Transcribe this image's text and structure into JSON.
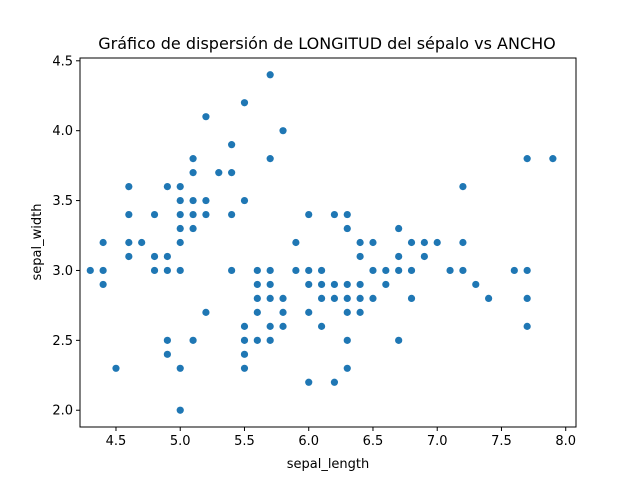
{
  "chart_data": {
    "type": "scatter",
    "title": "Gráfico de dispersión de LONGITUD del sépalo vs ANCHO",
    "xlabel": "sepal_length",
    "ylabel": "sepal_width",
    "xlim": [
      4.22,
      8.08
    ],
    "ylim": [
      1.88,
      4.52
    ],
    "xticks": [
      "4.5",
      "5.0",
      "5.5",
      "6.0",
      "6.5",
      "7.0",
      "7.5",
      "8.0"
    ],
    "yticks": [
      "2.0",
      "2.5",
      "3.0",
      "3.5",
      "4.0",
      "4.5"
    ],
    "grid": false,
    "marker_color": "#1f77b4",
    "points": [
      [
        4.3,
        3.0
      ],
      [
        4.4,
        3.0
      ],
      [
        4.4,
        2.9
      ],
      [
        4.4,
        3.2
      ],
      [
        4.5,
        2.3
      ],
      [
        4.6,
        3.1
      ],
      [
        4.6,
        3.4
      ],
      [
        4.6,
        3.6
      ],
      [
        4.6,
        3.2
      ],
      [
        4.7,
        3.2
      ],
      [
        4.8,
        3.4
      ],
      [
        4.8,
        3.0
      ],
      [
        4.8,
        3.1
      ],
      [
        4.9,
        3.0
      ],
      [
        4.9,
        3.1
      ],
      [
        4.9,
        3.6
      ],
      [
        4.9,
        2.5
      ],
      [
        4.9,
        2.4
      ],
      [
        5.0,
        3.6
      ],
      [
        5.0,
        3.4
      ],
      [
        5.0,
        3.0
      ],
      [
        5.0,
        3.3
      ],
      [
        5.0,
        3.5
      ],
      [
        5.0,
        3.2
      ],
      [
        5.0,
        2.3
      ],
      [
        5.0,
        2.0
      ],
      [
        5.1,
        3.5
      ],
      [
        5.1,
        3.8
      ],
      [
        5.1,
        3.7
      ],
      [
        5.1,
        3.3
      ],
      [
        5.1,
        3.4
      ],
      [
        5.1,
        2.5
      ],
      [
        5.2,
        3.4
      ],
      [
        5.2,
        3.5
      ],
      [
        5.2,
        4.1
      ],
      [
        5.2,
        2.7
      ],
      [
        5.3,
        3.7
      ],
      [
        5.4,
        3.9
      ],
      [
        5.4,
        3.7
      ],
      [
        5.4,
        3.4
      ],
      [
        5.4,
        3.0
      ],
      [
        5.5,
        4.2
      ],
      [
        5.5,
        3.5
      ],
      [
        5.5,
        2.3
      ],
      [
        5.5,
        2.4
      ],
      [
        5.5,
        2.5
      ],
      [
        5.5,
        2.6
      ],
      [
        5.6,
        2.9
      ],
      [
        5.6,
        3.0
      ],
      [
        5.6,
        2.5
      ],
      [
        5.6,
        2.8
      ],
      [
        5.6,
        2.7
      ],
      [
        5.7,
        4.4
      ],
      [
        5.7,
        3.8
      ],
      [
        5.7,
        2.8
      ],
      [
        5.7,
        2.6
      ],
      [
        5.7,
        3.0
      ],
      [
        5.7,
        2.9
      ],
      [
        5.7,
        2.5
      ],
      [
        5.8,
        4.0
      ],
      [
        5.8,
        2.7
      ],
      [
        5.8,
        2.6
      ],
      [
        5.8,
        2.8
      ],
      [
        5.9,
        3.0
      ],
      [
        5.9,
        3.2
      ],
      [
        6.0,
        2.2
      ],
      [
        6.0,
        2.9
      ],
      [
        6.0,
        3.4
      ],
      [
        6.0,
        2.7
      ],
      [
        6.0,
        3.0
      ],
      [
        6.1,
        2.8
      ],
      [
        6.1,
        2.9
      ],
      [
        6.1,
        3.0
      ],
      [
        6.1,
        2.6
      ],
      [
        6.2,
        2.2
      ],
      [
        6.2,
        2.9
      ],
      [
        6.2,
        3.4
      ],
      [
        6.2,
        2.8
      ],
      [
        6.3,
        3.3
      ],
      [
        6.3,
        2.5
      ],
      [
        6.3,
        2.3
      ],
      [
        6.3,
        2.7
      ],
      [
        6.3,
        2.9
      ],
      [
        6.3,
        2.8
      ],
      [
        6.3,
        3.4
      ],
      [
        6.4,
        3.2
      ],
      [
        6.4,
        2.9
      ],
      [
        6.4,
        2.7
      ],
      [
        6.4,
        2.8
      ],
      [
        6.4,
        3.1
      ],
      [
        6.5,
        2.8
      ],
      [
        6.5,
        3.0
      ],
      [
        6.5,
        3.2
      ],
      [
        6.6,
        2.9
      ],
      [
        6.6,
        3.0
      ],
      [
        6.7,
        3.1
      ],
      [
        6.7,
        3.0
      ],
      [
        6.7,
        2.5
      ],
      [
        6.7,
        3.3
      ],
      [
        6.8,
        2.8
      ],
      [
        6.8,
        3.0
      ],
      [
        6.8,
        3.2
      ],
      [
        6.9,
        3.1
      ],
      [
        6.9,
        3.2
      ],
      [
        7.0,
        3.2
      ],
      [
        7.1,
        3.0
      ],
      [
        7.2,
        3.6
      ],
      [
        7.2,
        3.2
      ],
      [
        7.2,
        3.0
      ],
      [
        7.3,
        2.9
      ],
      [
        7.4,
        2.8
      ],
      [
        7.6,
        3.0
      ],
      [
        7.7,
        3.8
      ],
      [
        7.7,
        2.6
      ],
      [
        7.7,
        2.8
      ],
      [
        7.7,
        3.0
      ],
      [
        7.9,
        3.8
      ]
    ]
  }
}
